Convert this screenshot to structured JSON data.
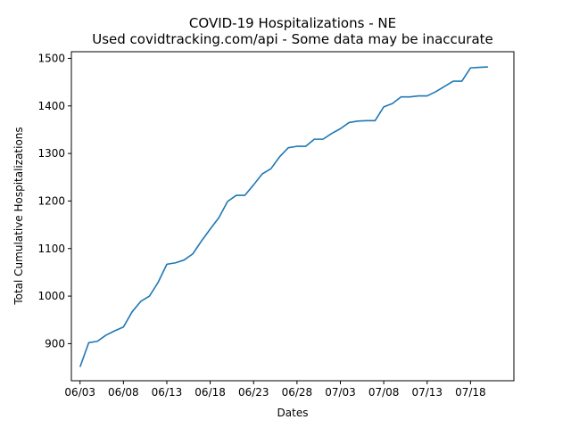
{
  "chart_data": {
    "type": "line",
    "title": "COVID-19 Hospitalizations - NE",
    "subtitle": "Used covidtracking.com/api - Some data may be inaccurate",
    "xlabel": "Dates",
    "ylabel": "Total Cumulative Hospitalizations",
    "x_tick_labels": [
      "06/03",
      "06/08",
      "06/13",
      "06/18",
      "06/23",
      "06/28",
      "07/03",
      "07/08",
      "07/13",
      "07/18"
    ],
    "y_ticks": [
      900,
      1000,
      1100,
      1200,
      1300,
      1400,
      1500
    ],
    "ylim": [
      822,
      1514
    ],
    "xlim": [
      "06/02",
      "07/23"
    ],
    "grid": false,
    "color": "#1f77b4",
    "series": [
      {
        "x": [
          "06/03",
          "06/04",
          "06/05",
          "06/06",
          "06/07",
          "06/08",
          "06/09",
          "06/10",
          "06/11",
          "06/12",
          "06/13",
          "06/14",
          "06/15",
          "06/16",
          "06/17",
          "06/18",
          "06/19",
          "06/20",
          "06/21",
          "06/22",
          "06/23",
          "06/24",
          "06/25",
          "06/26",
          "06/27",
          "06/28",
          "06/29",
          "06/30",
          "07/01",
          "07/02",
          "07/03",
          "07/04",
          "07/05",
          "07/06",
          "07/07",
          "07/08",
          "07/09",
          "07/10",
          "07/11",
          "07/12",
          "07/13",
          "07/14",
          "07/15",
          "07/16",
          "07/17",
          "07/18",
          "07/19",
          "07/20"
        ],
        "values": [
          851,
          902,
          905,
          918,
          927,
          935,
          967,
          989,
          1000,
          1029,
          1067,
          1070,
          1076,
          1089,
          1116,
          1141,
          1165,
          1199,
          1212,
          1212,
          1234,
          1257,
          1268,
          1293,
          1312,
          1315,
          1315,
          1330,
          1330,
          1342,
          1352,
          1365,
          1368,
          1369,
          1369,
          1398,
          1405,
          1419,
          1419,
          1421,
          1421,
          1430,
          1441,
          1452,
          1452,
          1480,
          1481,
          1482
        ]
      }
    ]
  }
}
